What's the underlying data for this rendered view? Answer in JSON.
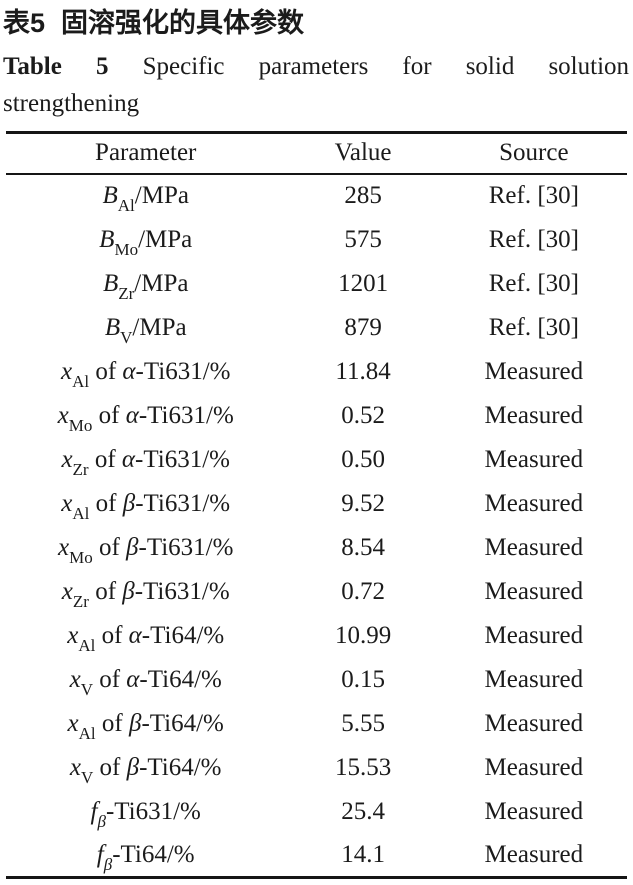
{
  "caption_zh": {
    "label": "表5",
    "title": "固溶强化的具体参数"
  },
  "caption_en": {
    "label": "Table 5",
    "title_line1": "Specific parameters for solid solution",
    "title_line2": "strengthening"
  },
  "table": {
    "headers": [
      "Parameter",
      "Value",
      "Source"
    ],
    "rows": [
      {
        "var": "B",
        "sub": "Al",
        "subi": "",
        "mid": "",
        "phase": "",
        "rest": "/MPa",
        "value": "285",
        "source": "Ref. [30]"
      },
      {
        "var": "B",
        "sub": "Mo",
        "subi": "",
        "mid": "",
        "phase": "",
        "rest": "/MPa",
        "value": "575",
        "source": "Ref. [30]"
      },
      {
        "var": "B",
        "sub": "Zr",
        "subi": "",
        "mid": "",
        "phase": "",
        "rest": "/MPa",
        "value": "1201",
        "source": "Ref. [30]"
      },
      {
        "var": "B",
        "sub": "V",
        "subi": "",
        "mid": "",
        "phase": "",
        "rest": "/MPa",
        "value": "879",
        "source": "Ref. [30]"
      },
      {
        "var": "x",
        "sub": "Al",
        "subi": "",
        "mid": " of ",
        "phase": "α",
        "rest": "-Ti631/%",
        "value": "11.84",
        "source": "Measured"
      },
      {
        "var": "x",
        "sub": "Mo",
        "subi": "",
        "mid": " of ",
        "phase": "α",
        "rest": "-Ti631/%",
        "value": "0.52",
        "source": "Measured"
      },
      {
        "var": "x",
        "sub": "Zr",
        "subi": "",
        "mid": " of ",
        "phase": "α",
        "rest": "-Ti631/%",
        "value": "0.50",
        "source": "Measured"
      },
      {
        "var": "x",
        "sub": "Al",
        "subi": "",
        "mid": " of ",
        "phase": "β",
        "rest": "-Ti631/%",
        "value": "9.52",
        "source": "Measured"
      },
      {
        "var": "x",
        "sub": "Mo",
        "subi": "",
        "mid": " of ",
        "phase": "β",
        "rest": "-Ti631/%",
        "value": "8.54",
        "source": "Measured"
      },
      {
        "var": "x",
        "sub": "Zr",
        "subi": "",
        "mid": " of ",
        "phase": "β",
        "rest": "-Ti631/%",
        "value": "0.72",
        "source": "Measured"
      },
      {
        "var": "x",
        "sub": "Al",
        "subi": "",
        "mid": " of ",
        "phase": "α",
        "rest": "-Ti64/%",
        "value": "10.99",
        "source": "Measured"
      },
      {
        "var": "x",
        "sub": "V",
        "subi": "",
        "mid": " of ",
        "phase": "α",
        "rest": "-Ti64/%",
        "value": "0.15",
        "source": "Measured"
      },
      {
        "var": "x",
        "sub": "Al",
        "subi": "",
        "mid": " of ",
        "phase": "β",
        "rest": "-Ti64/%",
        "value": "5.55",
        "source": "Measured"
      },
      {
        "var": "x",
        "sub": "V",
        "subi": "",
        "mid": " of ",
        "phase": "β",
        "rest": "-Ti64/%",
        "value": "15.53",
        "source": "Measured"
      },
      {
        "var": "f",
        "sub": "",
        "subi": "β",
        "mid": "",
        "phase": "",
        "rest": "-Ti631/%",
        "value": "25.4",
        "source": "Measured"
      },
      {
        "var": "f",
        "sub": "",
        "subi": "β",
        "mid": "",
        "phase": "",
        "rest": "-Ti64/%",
        "value": "14.1",
        "source": "Measured"
      }
    ]
  }
}
